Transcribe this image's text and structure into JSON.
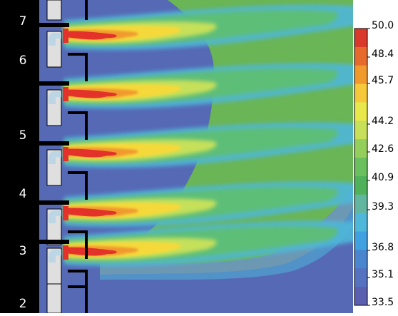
{
  "floors": [
    "7",
    "6",
    "5",
    "4",
    "3",
    "2"
  ],
  "legend": {
    "ticks": [
      "50.0",
      "48.4",
      "45.7",
      "44.2",
      "42.6",
      "40.9",
      "39.3",
      "36.8",
      "35.1",
      "33.5"
    ],
    "swatches": [
      "#d93a2b",
      "#e56a2c",
      "#f09a2e",
      "#f5c93a",
      "#e8e84a",
      "#c6e05a",
      "#95cf5b",
      "#6abf5e",
      "#4fb25a",
      "#62b6a0",
      "#4fb7d9",
      "#3fa1e0",
      "#4a86d0",
      "#5572c1",
      "#5b5fb0"
    ]
  },
  "colors": {
    "background": "#5669b5",
    "ambient": "#6ab555",
    "core": "#e3322a",
    "building": "#000000",
    "window": "#dfdfdf",
    "pipe": "#b9d5e6"
  }
}
